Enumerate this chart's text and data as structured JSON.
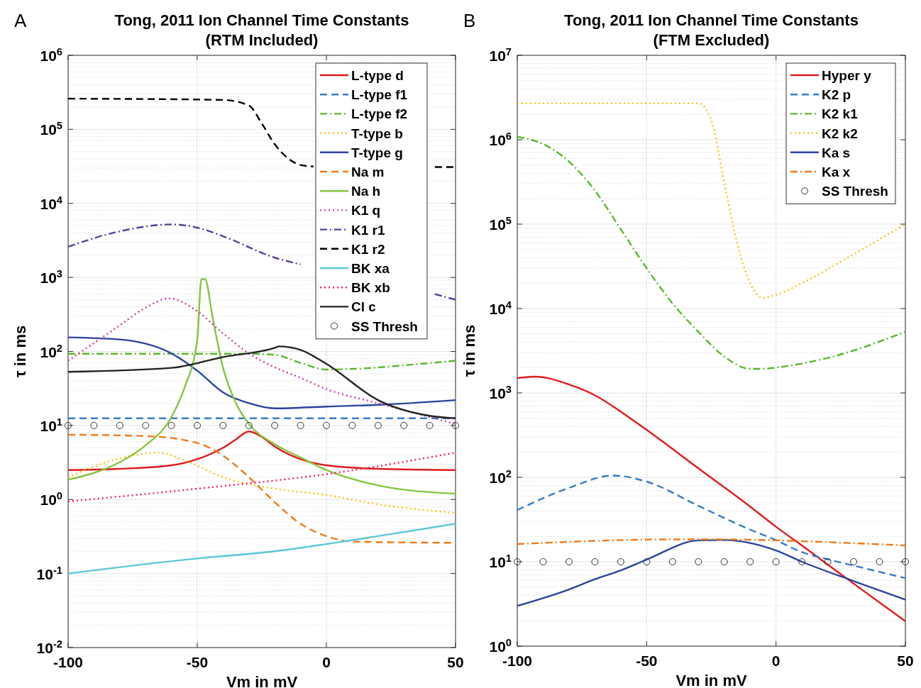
{
  "chart_data": [
    {
      "type": "line",
      "title": "Tong, 2011 Ion Channel Time Constants\n(RTM Included)",
      "xlabel": "Vm in mV",
      "ylabel": "τ in ms",
      "annotations": [
        "A"
      ],
      "log": "y",
      "grid": true,
      "legend": "top right",
      "xlim": [
        -100,
        50
      ],
      "xticks": [
        -100,
        -50,
        0,
        50
      ],
      "ylim": [
        0.01,
        1000000
      ],
      "yticks": [
        {
          "value": 0.01,
          "label": "10$^{-2}$"
        },
        {
          "value": 0.1,
          "label": "10$^{-1}$"
        },
        {
          "value": 1,
          "label": "10$^{0}$"
        },
        {
          "value": 10,
          "label": "10$^{1}$"
        },
        {
          "value": 100,
          "label": "10$^{2}$"
        },
        {
          "value": 1000,
          "label": "10$^{3}$"
        },
        {
          "value": 10000,
          "label": "10$^{4}$"
        },
        {
          "value": 100000,
          "label": "10$^{5}$"
        },
        {
          "value": 1000000,
          "label": "10$^{6}$"
        }
      ],
      "series": [
        {
          "name": "L-type d",
          "color": "#e31a1c",
          "line_style": "solid",
          "x": [
            -100,
            -80,
            -60,
            -50,
            -40,
            -35,
            -30,
            -25,
            -20,
            -10,
            0,
            20,
            50
          ],
          "values": [
            2.5,
            2.6,
            2.9,
            3.5,
            5,
            6.5,
            8.3,
            7,
            5.2,
            3.5,
            2.9,
            2.6,
            2.5
          ]
        },
        {
          "name": "L-type f1",
          "color": "#3a7cc7",
          "line_style": "dashed",
          "x": [
            -100,
            50
          ],
          "values": [
            12.5,
            12.5
          ]
        },
        {
          "name": "L-type f2",
          "color": "#5cb82e",
          "line_style": "dashdot",
          "x": [
            -100,
            -50,
            -30,
            -20,
            -10,
            0,
            10,
            30,
            50
          ],
          "values": [
            93,
            93,
            93,
            90,
            70,
            57,
            58,
            65,
            75
          ]
        },
        {
          "name": "T-type b",
          "color": "#f5c20f",
          "line_style": "dotted",
          "x": [
            -100,
            -80,
            -65,
            -55,
            -40,
            -20,
            0,
            20,
            50
          ],
          "values": [
            2,
            3.6,
            4.3,
            3.4,
            2,
            1.4,
            1.15,
            0.86,
            0.66
          ]
        },
        {
          "name": "T-type g",
          "color": "#2b43a0",
          "line_style": "solid",
          "x": [
            -100,
            -80,
            -60,
            -50,
            -40,
            -30,
            -20,
            0,
            20,
            50
          ],
          "values": [
            155,
            145,
            94,
            55,
            28,
            20,
            17,
            18,
            19,
            22
          ]
        },
        {
          "name": "Na m",
          "color": "#f07a1a",
          "line_style": "dashed",
          "x": [
            -100,
            -70,
            -50,
            -40,
            -30,
            -20,
            -10,
            0,
            10,
            50
          ],
          "values": [
            7.5,
            7.2,
            5.8,
            3.9,
            2,
            0.92,
            0.47,
            0.32,
            0.27,
            0.26
          ]
        },
        {
          "name": "Na h",
          "color": "#86c540",
          "line_style": "solid",
          "x": [
            -100,
            -80,
            -70,
            -60,
            -55,
            -50,
            -48.4,
            -47,
            -44,
            -40,
            -35,
            -30,
            -20,
            -10,
            0,
            20,
            50
          ],
          "values": [
            1.85,
            3.2,
            5.4,
            13,
            32,
            145,
            950,
            950,
            280,
            60,
            20,
            10.5,
            5.6,
            3.7,
            2.5,
            1.55,
            1.2
          ]
        },
        {
          "name": "K1 q",
          "color": "#c040a8",
          "line_style": "dotted",
          "x": [
            -100,
            -80,
            -70,
            -61,
            -50,
            -40,
            -30,
            -20,
            -10,
            0,
            20,
            40,
            50
          ],
          "values": [
            75,
            225,
            390,
            520,
            350,
            175,
            94,
            61,
            44,
            31,
            20,
            13,
            10.5
          ]
        },
        {
          "name": "K1 r1",
          "color": "#5b3c9a",
          "line_style": "dashdot",
          "x": [
            -100,
            -80,
            -60,
            -50,
            -40,
            -20,
            -10,
            0,
            20,
            42,
            50
          ],
          "values": [
            2600,
            4200,
            5200,
            4700,
            3600,
            1850,
            1500,
            null,
            null,
            595,
            500
          ]
        },
        {
          "name": "K1 r2",
          "color": "#000000",
          "line_style": "dashed",
          "x": [
            -100,
            -40,
            -30,
            -25,
            -20,
            -15,
            -10,
            -5,
            0,
            42,
            50
          ],
          "values": [
            260000,
            250000,
            210000,
            120000,
            63000,
            41000,
            33000,
            31500,
            null,
            31000,
            31000
          ]
        },
        {
          "name": "BK xa",
          "color": "#5bc8d8",
          "line_style": "solid",
          "x": [
            -100,
            -50,
            -20,
            0,
            20,
            50
          ],
          "values": [
            0.1,
            0.16,
            0.2,
            0.25,
            0.32,
            0.47
          ]
        },
        {
          "name": "BK xb",
          "color": "#ee1c6e",
          "line_style": "dotted",
          "x": [
            -100,
            -50,
            0,
            50
          ],
          "values": [
            0.94,
            1.4,
            2.2,
            4.3
          ]
        },
        {
          "name": "Cl c",
          "color": "#222222",
          "line_style": "solid",
          "x": [
            -100,
            -60,
            -40,
            -20,
            -18.4,
            -10,
            0,
            20,
            40,
            50
          ],
          "values": [
            53,
            60,
            84,
            112,
            117,
            105,
            68,
            22,
            13.5,
            12.5
          ]
        },
        {
          "name": "SS Thresh",
          "type": "scatter",
          "marker": "circle",
          "color": "#333333",
          "x": [
            -100,
            -90,
            -80,
            -70,
            -60,
            -50,
            -40,
            -30,
            -20,
            -10,
            0,
            10,
            20,
            30,
            40,
            50
          ],
          "values": [
            10,
            10,
            10,
            10,
            10,
            10,
            10,
            10,
            10,
            10,
            10,
            10,
            10,
            10,
            10,
            10
          ]
        }
      ]
    },
    {
      "type": "line",
      "title": "Tong, 2011 Ion Channel Time Constants\n(FTM Excluded)",
      "xlabel": "Vm in mV",
      "ylabel": "τ in ms",
      "annotations": [
        "B"
      ],
      "log": "y",
      "grid": true,
      "legend": "top right",
      "xlim": [
        -100,
        50
      ],
      "xticks": [
        -100,
        -50,
        0,
        50
      ],
      "ylim": [
        1,
        10000000
      ],
      "yticks": [
        {
          "value": 1,
          "label": "10$^{0}$"
        },
        {
          "value": 10,
          "label": "10$^{1}$"
        },
        {
          "value": 100,
          "label": "10$^{2}$"
        },
        {
          "value": 1000,
          "label": "10$^{3}$"
        },
        {
          "value": 10000,
          "label": "10$^{4}$"
        },
        {
          "value": 100000,
          "label": "10$^{5}$"
        },
        {
          "value": 1000000,
          "label": "10$^{6}$"
        },
        {
          "value": 10000000,
          "label": "10$^{7}$"
        }
      ],
      "series": [
        {
          "name": "Hyper y",
          "color": "#e31a1c",
          "line_style": "solid",
          "x": [
            -100,
            -93,
            -80,
            -70,
            -60,
            -50,
            -30,
            -10,
            0,
            10,
            30,
            50
          ],
          "values": [
            1500,
            1560,
            1260,
            940,
            600,
            365,
            128,
            45,
            26,
            15.6,
            5.5,
            1.97
          ]
        },
        {
          "name": "K2 p",
          "color": "#3a7cc7",
          "line_style": "dashed",
          "x": [
            -100,
            -80,
            -63,
            -50,
            -30,
            -10,
            0,
            10,
            20,
            30,
            50
          ],
          "values": [
            41,
            75,
            105,
            89,
            46,
            24,
            18,
            13,
            10.7,
            9,
            6.4
          ]
        },
        {
          "name": "K2 k1",
          "color": "#5cb82e",
          "line_style": "dashdot",
          "x": [
            -100,
            -90,
            -80,
            -70,
            -60,
            -50,
            -40,
            -30,
            -20,
            -10,
            -5,
            0,
            20,
            50
          ],
          "values": [
            1080000,
            890000,
            550000,
            250000,
            87000,
            30000,
            11500,
            5300,
            2700,
            1930,
            1930,
            2000,
            2600,
            5300
          ]
        },
        {
          "name": "K2 k2",
          "color": "#f5c20f",
          "line_style": "dotted",
          "x": [
            -100,
            -30,
            -25,
            -20,
            -15,
            -10,
            -5,
            0,
            10,
            30,
            50
          ],
          "values": [
            2700000,
            2700000,
            1700000,
            310000,
            59000,
            20000,
            13400,
            14500,
            20000,
            44000,
            100000
          ]
        },
        {
          "name": "Ka s",
          "color": "#2b43a0",
          "line_style": "solid",
          "x": [
            -100,
            -80,
            -70,
            -60,
            -50,
            -30,
            -20,
            0,
            10,
            30,
            50
          ],
          "values": [
            3,
            4.7,
            6.2,
            7.9,
            10.6,
            17.9,
            18.1,
            13.6,
            10,
            5.9,
            3.55
          ]
        },
        {
          "name": "Ka x",
          "color": "#f07a1a",
          "line_style": "dashdot",
          "x": [
            -100,
            -40,
            -20,
            10,
            50
          ],
          "values": [
            16.2,
            18.4,
            18.4,
            17.5,
            15.6
          ]
        },
        {
          "name": "SS Thresh",
          "type": "scatter",
          "marker": "circle",
          "color": "#333333",
          "x": [
            -100,
            -90,
            -80,
            -70,
            -60,
            -50,
            -40,
            -30,
            -20,
            -10,
            0,
            10,
            20,
            30,
            40,
            50
          ],
          "values": [
            10,
            10,
            10,
            10,
            10,
            10,
            10,
            10,
            10,
            10,
            10,
            10,
            10,
            10,
            10,
            10
          ]
        }
      ]
    }
  ]
}
